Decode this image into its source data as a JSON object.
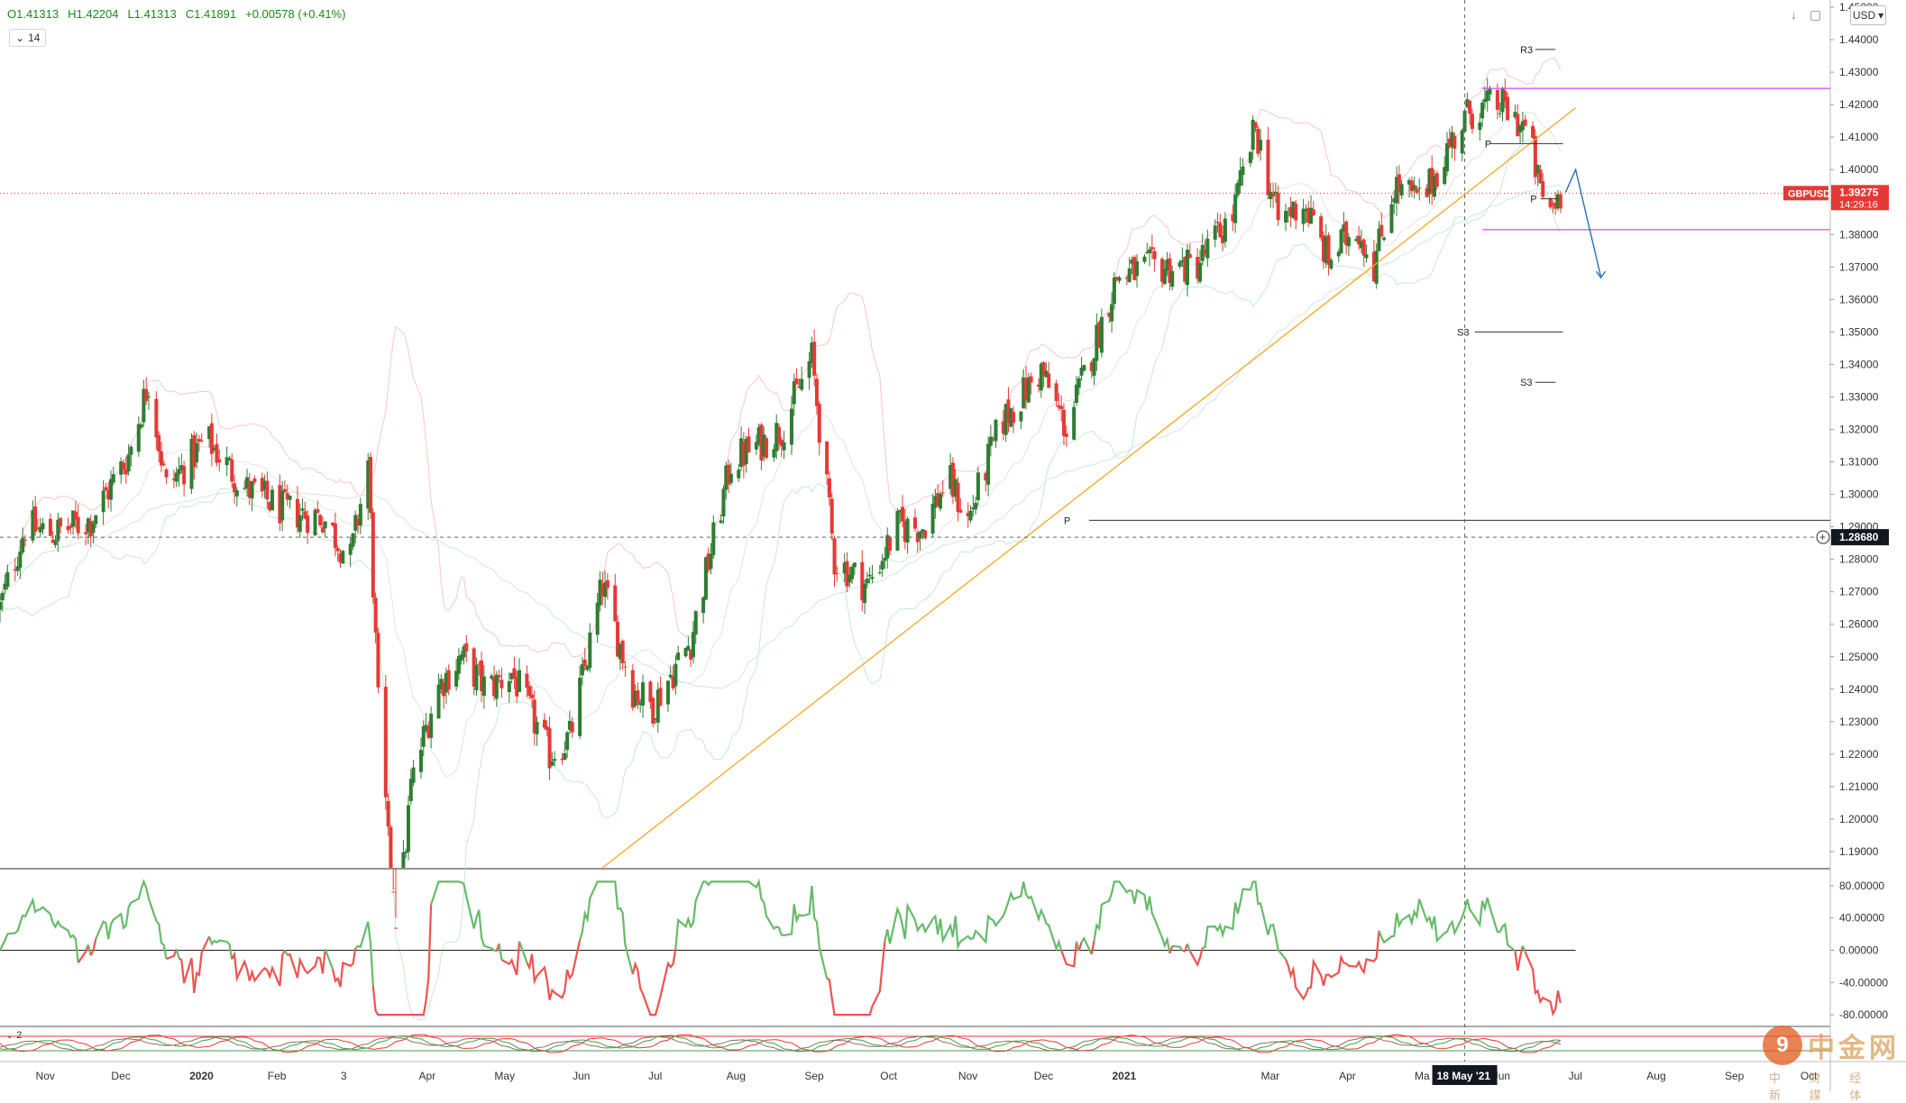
{
  "header": {
    "open": "O1.41313",
    "high": "H1.42204",
    "low": "L1.41313",
    "close": "C1.41891",
    "change": "+0.00578 (+0.41%)",
    "indicator_length": "14",
    "currency": "USD"
  },
  "price_axis": {
    "ticks": [
      "1.45000",
      "1.44000",
      "1.43000",
      "1.42000",
      "1.41000",
      "1.40000",
      "1.39000",
      "1.38000",
      "1.37000",
      "1.36000",
      "1.35000",
      "1.34000",
      "1.33000",
      "1.32000",
      "1.31000",
      "1.30000",
      "1.29000",
      "1.28000",
      "1.27000",
      "1.26000",
      "1.25000",
      "1.24000",
      "1.23000",
      "1.22000",
      "1.21000",
      "1.20000",
      "1.19000"
    ],
    "symbol_label": "GBPUSD",
    "last_price": "1.39275",
    "countdown": "14:29:16",
    "crosshair_price": "1.28680"
  },
  "osc_axis": {
    "ticks": [
      "80.00000",
      "40.00000",
      "0.00000",
      "-40.00000",
      "-80.00000"
    ]
  },
  "time_axis": {
    "labels": [
      "Nov",
      "Dec",
      "2020",
      "Feb",
      "3",
      "Apr",
      "May",
      "Jun",
      "Jul",
      "Aug",
      "Sep",
      "Oct",
      "Nov",
      "Dec",
      "2021",
      "Mar",
      "Apr",
      "Ma",
      "Jun",
      "Jul",
      "Aug",
      "Sep",
      "Oct"
    ],
    "crosshair_date": "18 May '21"
  },
  "pivots": {
    "r3": "R3",
    "p_upper": "P",
    "p_mid": "P",
    "s3_a": "S3",
    "s3_b": "S3",
    "p_long": "P"
  },
  "sub_pane": {
    "label": "2"
  },
  "colors": {
    "up": "#2e7d32",
    "down": "#e53935",
    "trendline": "#f5a623",
    "zone": "#e040fb",
    "projection": "#2a6ebb",
    "osc_pos": "#66bb6a",
    "osc_neg": "#ef5350"
  },
  "watermark": {
    "logo_char": "9",
    "text": "中金网",
    "sub": "中 财 经 新 媒 体"
  },
  "chart_data": {
    "type": "candlestick",
    "symbol": "GBPUSD",
    "timeframe": "daily",
    "x_range": [
      "2019-10-15",
      "2021-10-10"
    ],
    "ylim": [
      1.185,
      1.45
    ],
    "last_close": 1.39275,
    "path_points": [
      [
        "2019-10-15",
        1.265
      ],
      [
        "2019-10-25",
        1.29
      ],
      [
        "2019-11-05",
        1.288
      ],
      [
        "2019-11-20",
        1.292
      ],
      [
        "2019-12-05",
        1.312
      ],
      [
        "2019-12-13",
        1.335
      ],
      [
        "2019-12-20",
        1.302
      ],
      [
        "2020-01-05",
        1.317
      ],
      [
        "2020-01-20",
        1.302
      ],
      [
        "2020-02-05",
        1.295
      ],
      [
        "2020-02-20",
        1.293
      ],
      [
        "2020-03-02",
        1.28
      ],
      [
        "2020-03-09",
        1.31
      ],
      [
        "2020-03-13",
        1.235
      ],
      [
        "2020-03-20",
        1.16
      ],
      [
        "2020-03-26",
        1.21
      ],
      [
        "2020-04-05",
        1.24
      ],
      [
        "2020-04-15",
        1.25
      ],
      [
        "2020-04-25",
        1.24
      ],
      [
        "2020-05-05",
        1.245
      ],
      [
        "2020-05-20",
        1.22
      ],
      [
        "2020-05-28",
        1.225
      ],
      [
        "2020-06-10",
        1.272
      ],
      [
        "2020-06-22",
        1.24
      ],
      [
        "2020-06-30",
        1.235
      ],
      [
        "2020-07-15",
        1.255
      ],
      [
        "2020-07-31",
        1.31
      ],
      [
        "2020-08-20",
        1.32
      ],
      [
        "2020-09-01",
        1.342
      ],
      [
        "2020-09-10",
        1.28
      ],
      [
        "2020-09-23",
        1.272
      ],
      [
        "2020-10-05",
        1.29
      ],
      [
        "2020-10-15",
        1.29
      ],
      [
        "2020-10-25",
        1.305
      ],
      [
        "2020-11-02",
        1.292
      ],
      [
        "2020-11-15",
        1.322
      ],
      [
        "2020-12-01",
        1.338
      ],
      [
        "2020-12-11",
        1.32
      ],
      [
        "2020-12-31",
        1.367
      ],
      [
        "2021-01-15",
        1.37
      ],
      [
        "2021-01-31",
        1.37
      ],
      [
        "2021-02-15",
        1.386
      ],
      [
        "2021-02-24",
        1.413
      ],
      [
        "2021-03-05",
        1.384
      ],
      [
        "2021-03-15",
        1.39
      ],
      [
        "2021-03-25",
        1.372
      ],
      [
        "2021-04-05",
        1.383
      ],
      [
        "2021-04-12",
        1.371
      ],
      [
        "2021-04-20",
        1.395
      ],
      [
        "2021-05-01",
        1.39
      ],
      [
        "2021-05-10",
        1.405
      ],
      [
        "2021-05-20",
        1.418
      ],
      [
        "2021-06-01",
        1.42
      ],
      [
        "2021-06-12",
        1.412
      ],
      [
        "2021-06-17",
        1.393
      ],
      [
        "2021-06-21",
        1.388
      ],
      [
        "2021-06-25",
        1.393
      ]
    ],
    "pivot_levels": [
      {
        "label": "R3",
        "price": 1.437
      },
      {
        "label": "P",
        "price": 1.408
      },
      {
        "label": "P",
        "price": 1.391
      },
      {
        "label": "S3",
        "price": 1.35
      },
      {
        "label": "S3",
        "price": 1.3345
      },
      {
        "label": "P",
        "price": 1.292
      }
    ],
    "zone_levels": [
      1.425,
      1.3815
    ],
    "trendline": {
      "from": [
        "2020-06-10",
        1.185
      ],
      "to": [
        "2021-07-01",
        1.419
      ]
    },
    "projection": [
      [
        "2021-06-27",
        1.393
      ],
      [
        "2021-07-01",
        1.4
      ],
      [
        "2021-07-11",
        1.367
      ]
    ],
    "crosshair": {
      "date": "2021-05-18",
      "price": 1.2868
    },
    "oscillator": {
      "ylim": [
        -90,
        100
      ],
      "zero": 0
    }
  }
}
